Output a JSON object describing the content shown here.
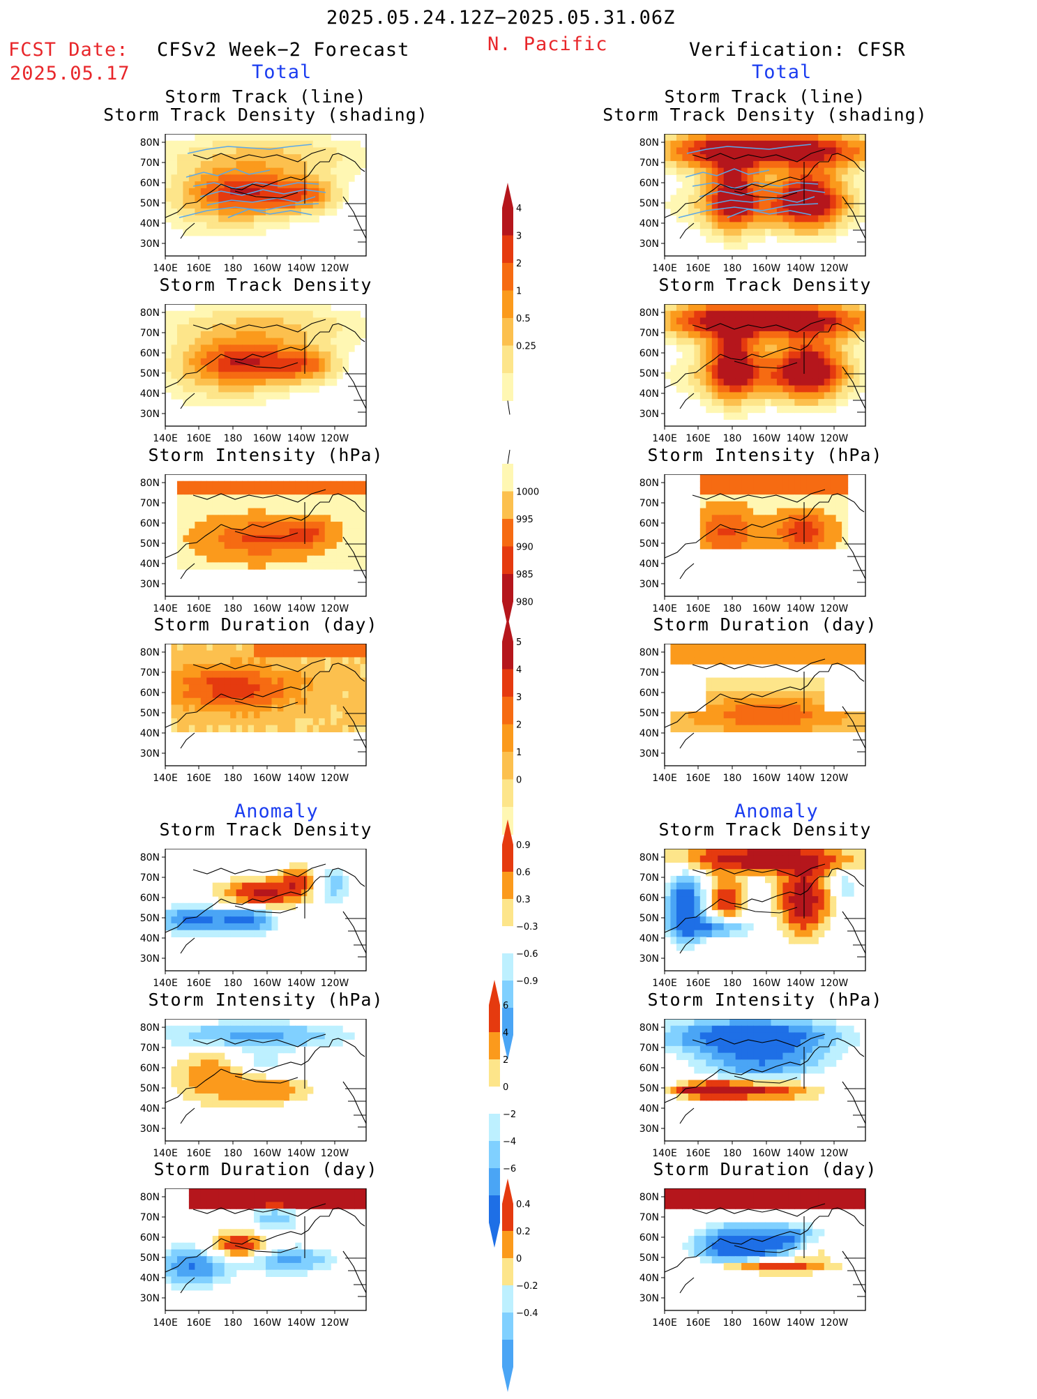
{
  "header": {
    "period": "2025.05.24.12Z−2025.05.31.06Z",
    "region": "N. Pacific",
    "fcst_label": "FCST Date:",
    "fcst_date": "2025.05.17",
    "left_title": "CFSv2 Week−2 Forecast",
    "right_title": "Verification: CFSR",
    "total_left": "Total",
    "total_right": "Total",
    "anomaly_left": "Anomaly",
    "anomaly_right": "Anomaly"
  },
  "panel_titles": {
    "track1": "Storm Track (line)",
    "track2": "Storm Track Density (shading)",
    "density": "Storm Track Density",
    "intensity": "Storm Intensity (hPa)",
    "duration": "Storm Duration (day)"
  },
  "axes": {
    "lat_labels": [
      "80N",
      "70N",
      "60N",
      "50N",
      "40N",
      "30N"
    ],
    "lon_labels": [
      "140E",
      "160E",
      "180",
      "160W",
      "140W",
      "120W"
    ]
  },
  "colors": {
    "warm": [
      "#fff7b3",
      "#fde58a",
      "#fcc04e",
      "#fb9a1c",
      "#f66b12",
      "#e53a0f",
      "#b5161c"
    ],
    "cool": [
      "#bdf0ff",
      "#80d0ff",
      "#4aa5f5",
      "#1e6fe6"
    ],
    "track_line": "#5aa8e8"
  },
  "chart_data": [
    {
      "type": "heatmap",
      "panel": "forecast-total-track",
      "title": "Storm Track (line) / Storm Track Density (shading)",
      "colorbar": [
        0.25,
        0.5,
        1,
        2,
        3,
        4
      ]
    },
    {
      "type": "heatmap",
      "panel": "forecast-total-density",
      "title": "Storm Track Density",
      "colorbar": [
        0.25,
        0.5,
        1,
        2,
        3,
        4
      ]
    },
    {
      "type": "heatmap",
      "panel": "forecast-total-intensity",
      "title": "Storm Intensity (hPa)",
      "colorbar": [
        1000,
        995,
        990,
        985,
        980
      ]
    },
    {
      "type": "heatmap",
      "panel": "forecast-total-duration",
      "title": "Storm Duration (day)",
      "colorbar": [
        0,
        1,
        2,
        3,
        4,
        5
      ]
    },
    {
      "type": "heatmap",
      "panel": "forecast-anom-density",
      "title": "Storm Track Density",
      "colorbar": [
        -0.9,
        -0.6,
        -0.3,
        0.3,
        0.6,
        0.9
      ]
    },
    {
      "type": "heatmap",
      "panel": "forecast-anom-intensity",
      "title": "Storm Intensity (hPa)",
      "colorbar": [
        -6,
        -4,
        -2,
        0,
        2,
        4,
        6
      ]
    },
    {
      "type": "heatmap",
      "panel": "forecast-anom-duration",
      "title": "Storm Duration (day)",
      "colorbar": [
        -0.4,
        -0.2,
        0,
        0.2,
        0.4
      ]
    },
    {
      "type": "heatmap",
      "panel": "verif-total-track",
      "title": "Storm Track (line) / Storm Track Density (shading)"
    },
    {
      "type": "heatmap",
      "panel": "verif-total-density",
      "title": "Storm Track Density"
    },
    {
      "type": "heatmap",
      "panel": "verif-total-intensity",
      "title": "Storm Intensity (hPa)"
    },
    {
      "type": "heatmap",
      "panel": "verif-total-duration",
      "title": "Storm Duration (day)"
    },
    {
      "type": "heatmap",
      "panel": "verif-anom-density",
      "title": "Storm Track Density"
    },
    {
      "type": "heatmap",
      "panel": "verif-anom-intensity",
      "title": "Storm Intensity (hPa)"
    },
    {
      "type": "heatmap",
      "panel": "verif-anom-duration",
      "title": "Storm Duration (day)"
    }
  ],
  "colorbars": {
    "density_total": [
      "4",
      "3",
      "2",
      "1",
      "0.5",
      "0.25"
    ],
    "intensity_total": [
      "1000",
      "995",
      "990",
      "985",
      "980"
    ],
    "duration_total": [
      "5",
      "4",
      "3",
      "2",
      "1",
      "0"
    ],
    "density_anom": [
      "0.9",
      "0.6",
      "0.3",
      "−0.3",
      "−0.6",
      "−0.9"
    ],
    "intensity_anom": [
      "6",
      "4",
      "2",
      "0",
      "−2",
      "−4",
      "−6"
    ],
    "duration_anom": [
      "0.4",
      "0.2",
      "0",
      "−0.2",
      "−0.4"
    ]
  }
}
